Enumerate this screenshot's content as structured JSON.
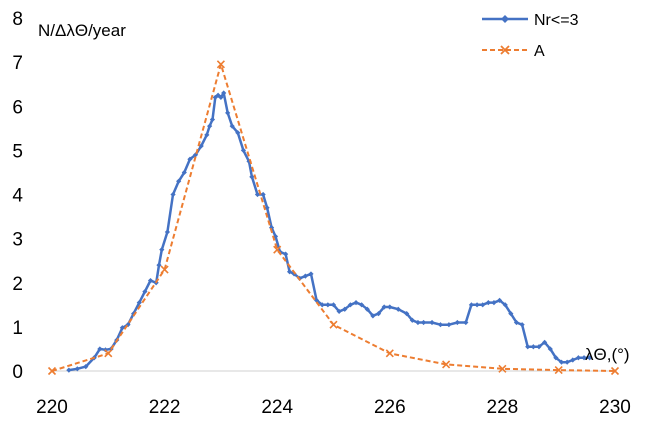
{
  "chart_data": {
    "type": "line",
    "ylabel": "N/ΔλΘ/year",
    "xlabel": "λΘ,(°)",
    "xlim": [
      220,
      230
    ],
    "ylim": [
      0,
      8
    ],
    "x_ticks": [
      "220",
      "222",
      "224",
      "226",
      "228",
      "230"
    ],
    "y_ticks": [
      "0",
      "1",
      "2",
      "3",
      "4",
      "5",
      "6",
      "7",
      "8"
    ],
    "grid": false,
    "legend_position": "top-right",
    "series": [
      {
        "name": "Nr<=3",
        "color": "#4472c4",
        "style": "solid",
        "marker": "diamond",
        "points": [
          [
            220.3,
            0.02
          ],
          [
            220.45,
            0.05
          ],
          [
            220.6,
            0.1
          ],
          [
            220.75,
            0.3
          ],
          [
            220.85,
            0.5
          ],
          [
            220.95,
            0.48
          ],
          [
            221.05,
            0.5
          ],
          [
            221.15,
            0.7
          ],
          [
            221.25,
            0.98
          ],
          [
            221.35,
            1.05
          ],
          [
            221.45,
            1.3
          ],
          [
            221.55,
            1.55
          ],
          [
            221.65,
            1.8
          ],
          [
            221.75,
            2.05
          ],
          [
            221.85,
            2.0
          ],
          [
            221.9,
            2.4
          ],
          [
            221.95,
            2.75
          ],
          [
            222.05,
            3.15
          ],
          [
            222.15,
            4.0
          ],
          [
            222.25,
            4.3
          ],
          [
            222.35,
            4.5
          ],
          [
            222.45,
            4.8
          ],
          [
            222.55,
            4.9
          ],
          [
            222.65,
            5.1
          ],
          [
            222.75,
            5.35
          ],
          [
            222.8,
            5.55
          ],
          [
            222.85,
            5.7
          ],
          [
            222.9,
            6.2
          ],
          [
            222.95,
            6.25
          ],
          [
            223.0,
            6.2
          ],
          [
            223.05,
            6.3
          ],
          [
            223.12,
            5.85
          ],
          [
            223.2,
            5.55
          ],
          [
            223.3,
            5.4
          ],
          [
            223.4,
            5.0
          ],
          [
            223.5,
            4.75
          ],
          [
            223.55,
            4.4
          ],
          [
            223.65,
            4.0
          ],
          [
            223.75,
            4.0
          ],
          [
            223.82,
            3.7
          ],
          [
            223.9,
            3.25
          ],
          [
            223.97,
            3.05
          ],
          [
            224.05,
            2.7
          ],
          [
            224.15,
            2.65
          ],
          [
            224.22,
            2.25
          ],
          [
            224.3,
            2.2
          ],
          [
            224.4,
            2.1
          ],
          [
            224.5,
            2.15
          ],
          [
            224.6,
            2.2
          ],
          [
            224.7,
            1.6
          ],
          [
            224.8,
            1.5
          ],
          [
            224.9,
            1.5
          ],
          [
            225.0,
            1.5
          ],
          [
            225.1,
            1.35
          ],
          [
            225.2,
            1.4
          ],
          [
            225.3,
            1.5
          ],
          [
            225.4,
            1.55
          ],
          [
            225.5,
            1.5
          ],
          [
            225.6,
            1.4
          ],
          [
            225.7,
            1.25
          ],
          [
            225.8,
            1.3
          ],
          [
            225.9,
            1.45
          ],
          [
            226.0,
            1.45
          ],
          [
            226.15,
            1.4
          ],
          [
            226.3,
            1.3
          ],
          [
            226.4,
            1.15
          ],
          [
            226.5,
            1.1
          ],
          [
            226.6,
            1.1
          ],
          [
            226.75,
            1.1
          ],
          [
            226.9,
            1.05
          ],
          [
            227.05,
            1.05
          ],
          [
            227.2,
            1.1
          ],
          [
            227.35,
            1.1
          ],
          [
            227.45,
            1.5
          ],
          [
            227.55,
            1.5
          ],
          [
            227.65,
            1.5
          ],
          [
            227.75,
            1.55
          ],
          [
            227.85,
            1.55
          ],
          [
            227.95,
            1.6
          ],
          [
            228.05,
            1.5
          ],
          [
            228.15,
            1.3
          ],
          [
            228.25,
            1.1
          ],
          [
            228.35,
            1.05
          ],
          [
            228.45,
            0.55
          ],
          [
            228.55,
            0.55
          ],
          [
            228.65,
            0.55
          ],
          [
            228.75,
            0.65
          ],
          [
            228.85,
            0.5
          ],
          [
            228.95,
            0.3
          ],
          [
            229.05,
            0.2
          ],
          [
            229.15,
            0.2
          ],
          [
            229.25,
            0.25
          ],
          [
            229.35,
            0.3
          ],
          [
            229.45,
            0.3
          ],
          [
            229.55,
            0.3
          ]
        ]
      },
      {
        "name": "A",
        "color": "#ed7d31",
        "style": "dashed",
        "marker": "x",
        "points": [
          [
            220.0,
            0.0
          ],
          [
            221.0,
            0.4
          ],
          [
            222.0,
            2.3
          ],
          [
            223.0,
            6.95
          ],
          [
            224.0,
            2.75
          ],
          [
            225.0,
            1.05
          ],
          [
            226.0,
            0.4
          ],
          [
            227.0,
            0.15
          ],
          [
            228.0,
            0.05
          ],
          [
            229.0,
            0.02
          ],
          [
            230.0,
            0.0
          ]
        ]
      }
    ]
  }
}
